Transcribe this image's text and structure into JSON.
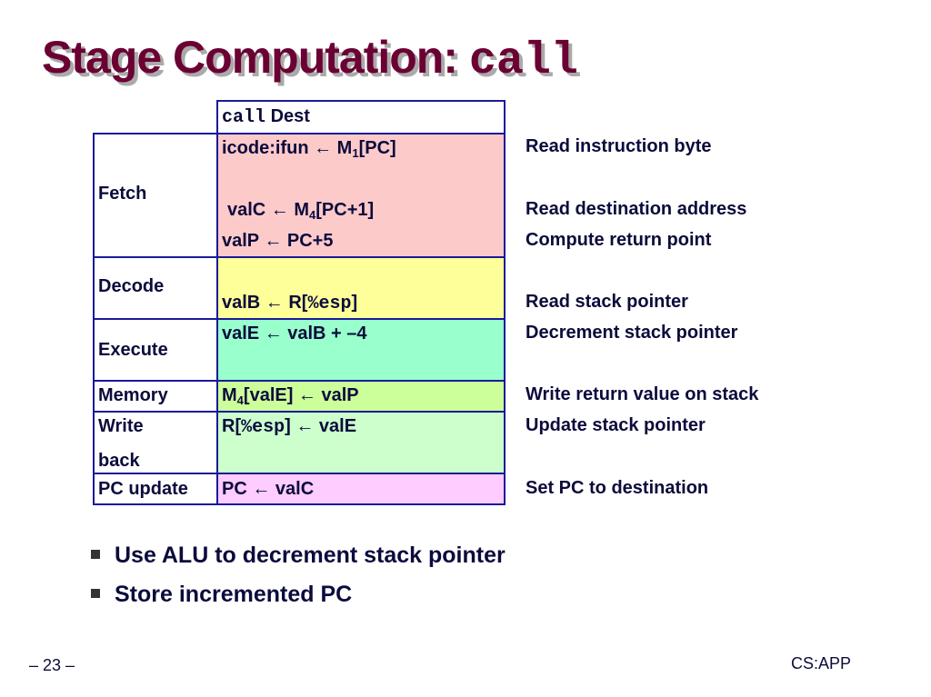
{
  "title": {
    "text": "Stage Computation: ",
    "code": "call"
  },
  "header": {
    "code": "call",
    "text": "Dest"
  },
  "stages": {
    "fetch": {
      "label": "Fetch",
      "op1_a": "icode:ifun ← M",
      "op1_sub": "1",
      "op1_b": "[PC]",
      "op2_a": "valC ← M",
      "op2_sub": "4",
      "op2_b": "[PC+1]",
      "op3": "valP ← PC+5",
      "color": "#fdcaca"
    },
    "decode": {
      "label": "Decode",
      "op_a": "valB ← R[",
      "op_code": "%esp",
      "op_b": "]",
      "color": "#ffff99"
    },
    "execute": {
      "label": "Execute",
      "op": "valE ← valB + –4",
      "color": "#99ffcc"
    },
    "memory": {
      "label": "Memory",
      "op_a": "M",
      "op_sub": "4",
      "op_b": "[valE] ← valP",
      "color": "#ccff99"
    },
    "writeback": {
      "label1": "Write",
      "label2": "back",
      "op_a": "R[",
      "op_code": "%esp",
      "op_b": "] ← valE",
      "color": "#ccffcc"
    },
    "pcupdate": {
      "label": "PC update",
      "op": "PC ← valC",
      "color": "#ffccff"
    }
  },
  "descriptions": [
    "Read instruction byte",
    "Read destination address",
    "Compute return point",
    "Read stack pointer",
    "Decrement stack pointer",
    "Write return value on stack",
    "Update stack pointer",
    "Set PC to destination"
  ],
  "bullets": [
    "Use ALU to decrement stack pointer",
    "Store incremented PC"
  ],
  "footer": {
    "page": "– 23 –",
    "brand": "CS:APP"
  }
}
